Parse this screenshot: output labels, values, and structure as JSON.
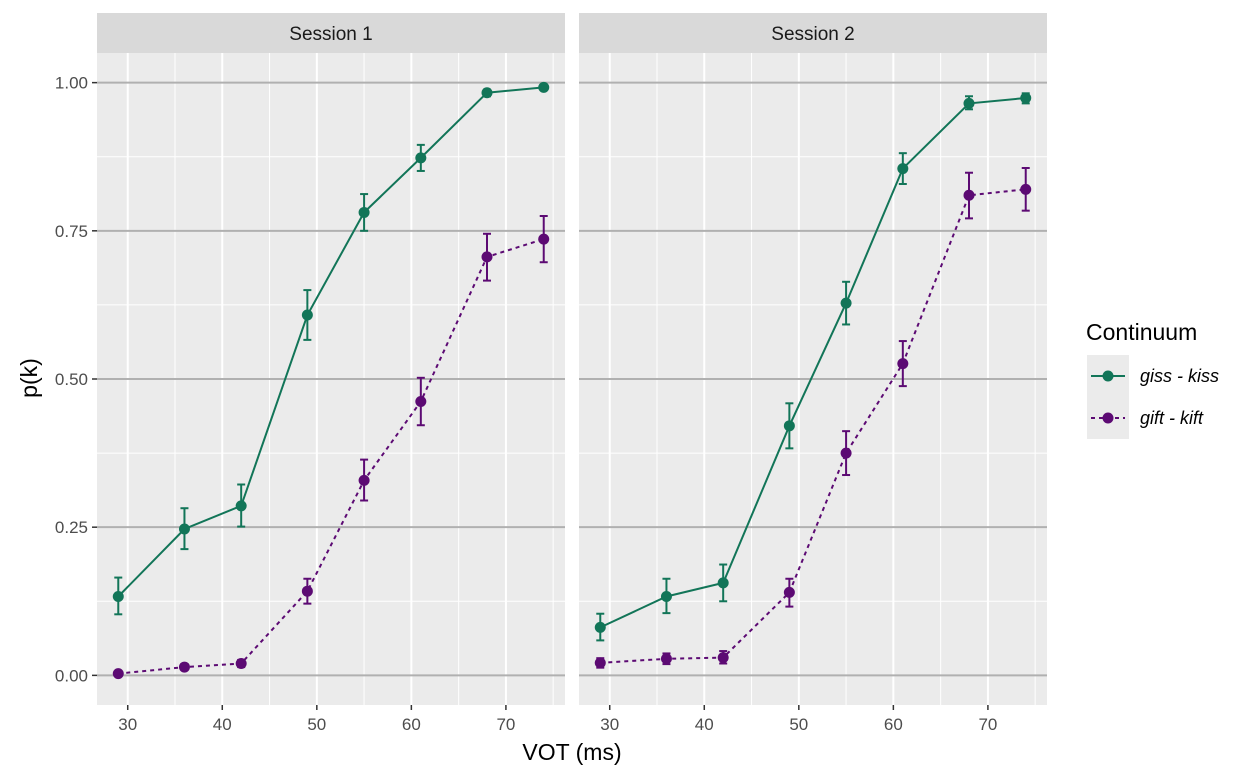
{
  "chart_data": {
    "type": "line",
    "xlabel": "VOT (ms)",
    "ylabel": "p(k)",
    "xlim": [
      26.75,
      76.25
    ],
    "ylim": [
      -0.05,
      1.05
    ],
    "x_ticks": [
      30,
      40,
      50,
      60,
      70
    ],
    "y_ticks": [
      0.0,
      0.25,
      0.5,
      0.75,
      1.0
    ],
    "x_tick_labels": [
      "30",
      "40",
      "50",
      "60",
      "70"
    ],
    "y_tick_labels": [
      "0.00",
      "0.25",
      "0.50",
      "0.75",
      "1.00"
    ],
    "grid": true,
    "legend": {
      "title": "Continuum",
      "placement": "right",
      "entries": [
        {
          "label": "giss - kiss",
          "color": "#127558",
          "linetype": "solid"
        },
        {
          "label": "gift - kift",
          "color": "#5c0a73",
          "linetype": "dotted"
        }
      ]
    },
    "panels": [
      {
        "title": "Session 1",
        "series": [
          {
            "name": "giss - kiss",
            "color": "#127558",
            "linetype": "solid",
            "x": [
              29,
              36,
              42,
              49,
              55,
              61,
              68,
              74
            ],
            "y": [
              0.133,
              0.247,
              0.286,
              0.608,
              0.781,
              0.873,
              0.983,
              0.992
            ],
            "err_low": [
              0.103,
              0.213,
              0.251,
              0.566,
              0.75,
              0.851,
              0.977,
              0.988
            ],
            "err_high": [
              0.165,
              0.282,
              0.322,
              0.65,
              0.812,
              0.895,
              0.988,
              0.995
            ]
          },
          {
            "name": "gift - kift",
            "color": "#5c0a73",
            "linetype": "dotted",
            "x": [
              29,
              36,
              42,
              49,
              55,
              61,
              68,
              74
            ],
            "y": [
              0.003,
              0.014,
              0.02,
              0.142,
              0.329,
              0.462,
              0.706,
              0.736
            ],
            "err_low": [
              0.001,
              0.009,
              0.014,
              0.121,
              0.295,
              0.422,
              0.666,
              0.697
            ],
            "err_high": [
              0.006,
              0.019,
              0.026,
              0.163,
              0.364,
              0.502,
              0.745,
              0.775
            ]
          }
        ]
      },
      {
        "title": "Session 2",
        "series": [
          {
            "name": "giss - kiss",
            "color": "#127558",
            "linetype": "solid",
            "x": [
              29,
              36,
              42,
              49,
              55,
              61,
              68,
              74
            ],
            "y": [
              0.081,
              0.133,
              0.156,
              0.421,
              0.628,
              0.855,
              0.965,
              0.974
            ],
            "err_low": [
              0.059,
              0.105,
              0.125,
              0.383,
              0.592,
              0.829,
              0.955,
              0.965
            ],
            "err_high": [
              0.104,
              0.163,
              0.187,
              0.459,
              0.664,
              0.881,
              0.977,
              0.982
            ]
          },
          {
            "name": "gift - kift",
            "color": "#5c0a73",
            "linetype": "dotted",
            "x": [
              29,
              36,
              42,
              49,
              55,
              61,
              68,
              74
            ],
            "y": [
              0.021,
              0.028,
              0.03,
              0.14,
              0.375,
              0.526,
              0.81,
              0.82
            ],
            "err_low": [
              0.013,
              0.019,
              0.02,
              0.116,
              0.338,
              0.488,
              0.771,
              0.784
            ],
            "err_high": [
              0.029,
              0.037,
              0.041,
              0.163,
              0.412,
              0.564,
              0.848,
              0.856
            ]
          }
        ]
      }
    ]
  }
}
